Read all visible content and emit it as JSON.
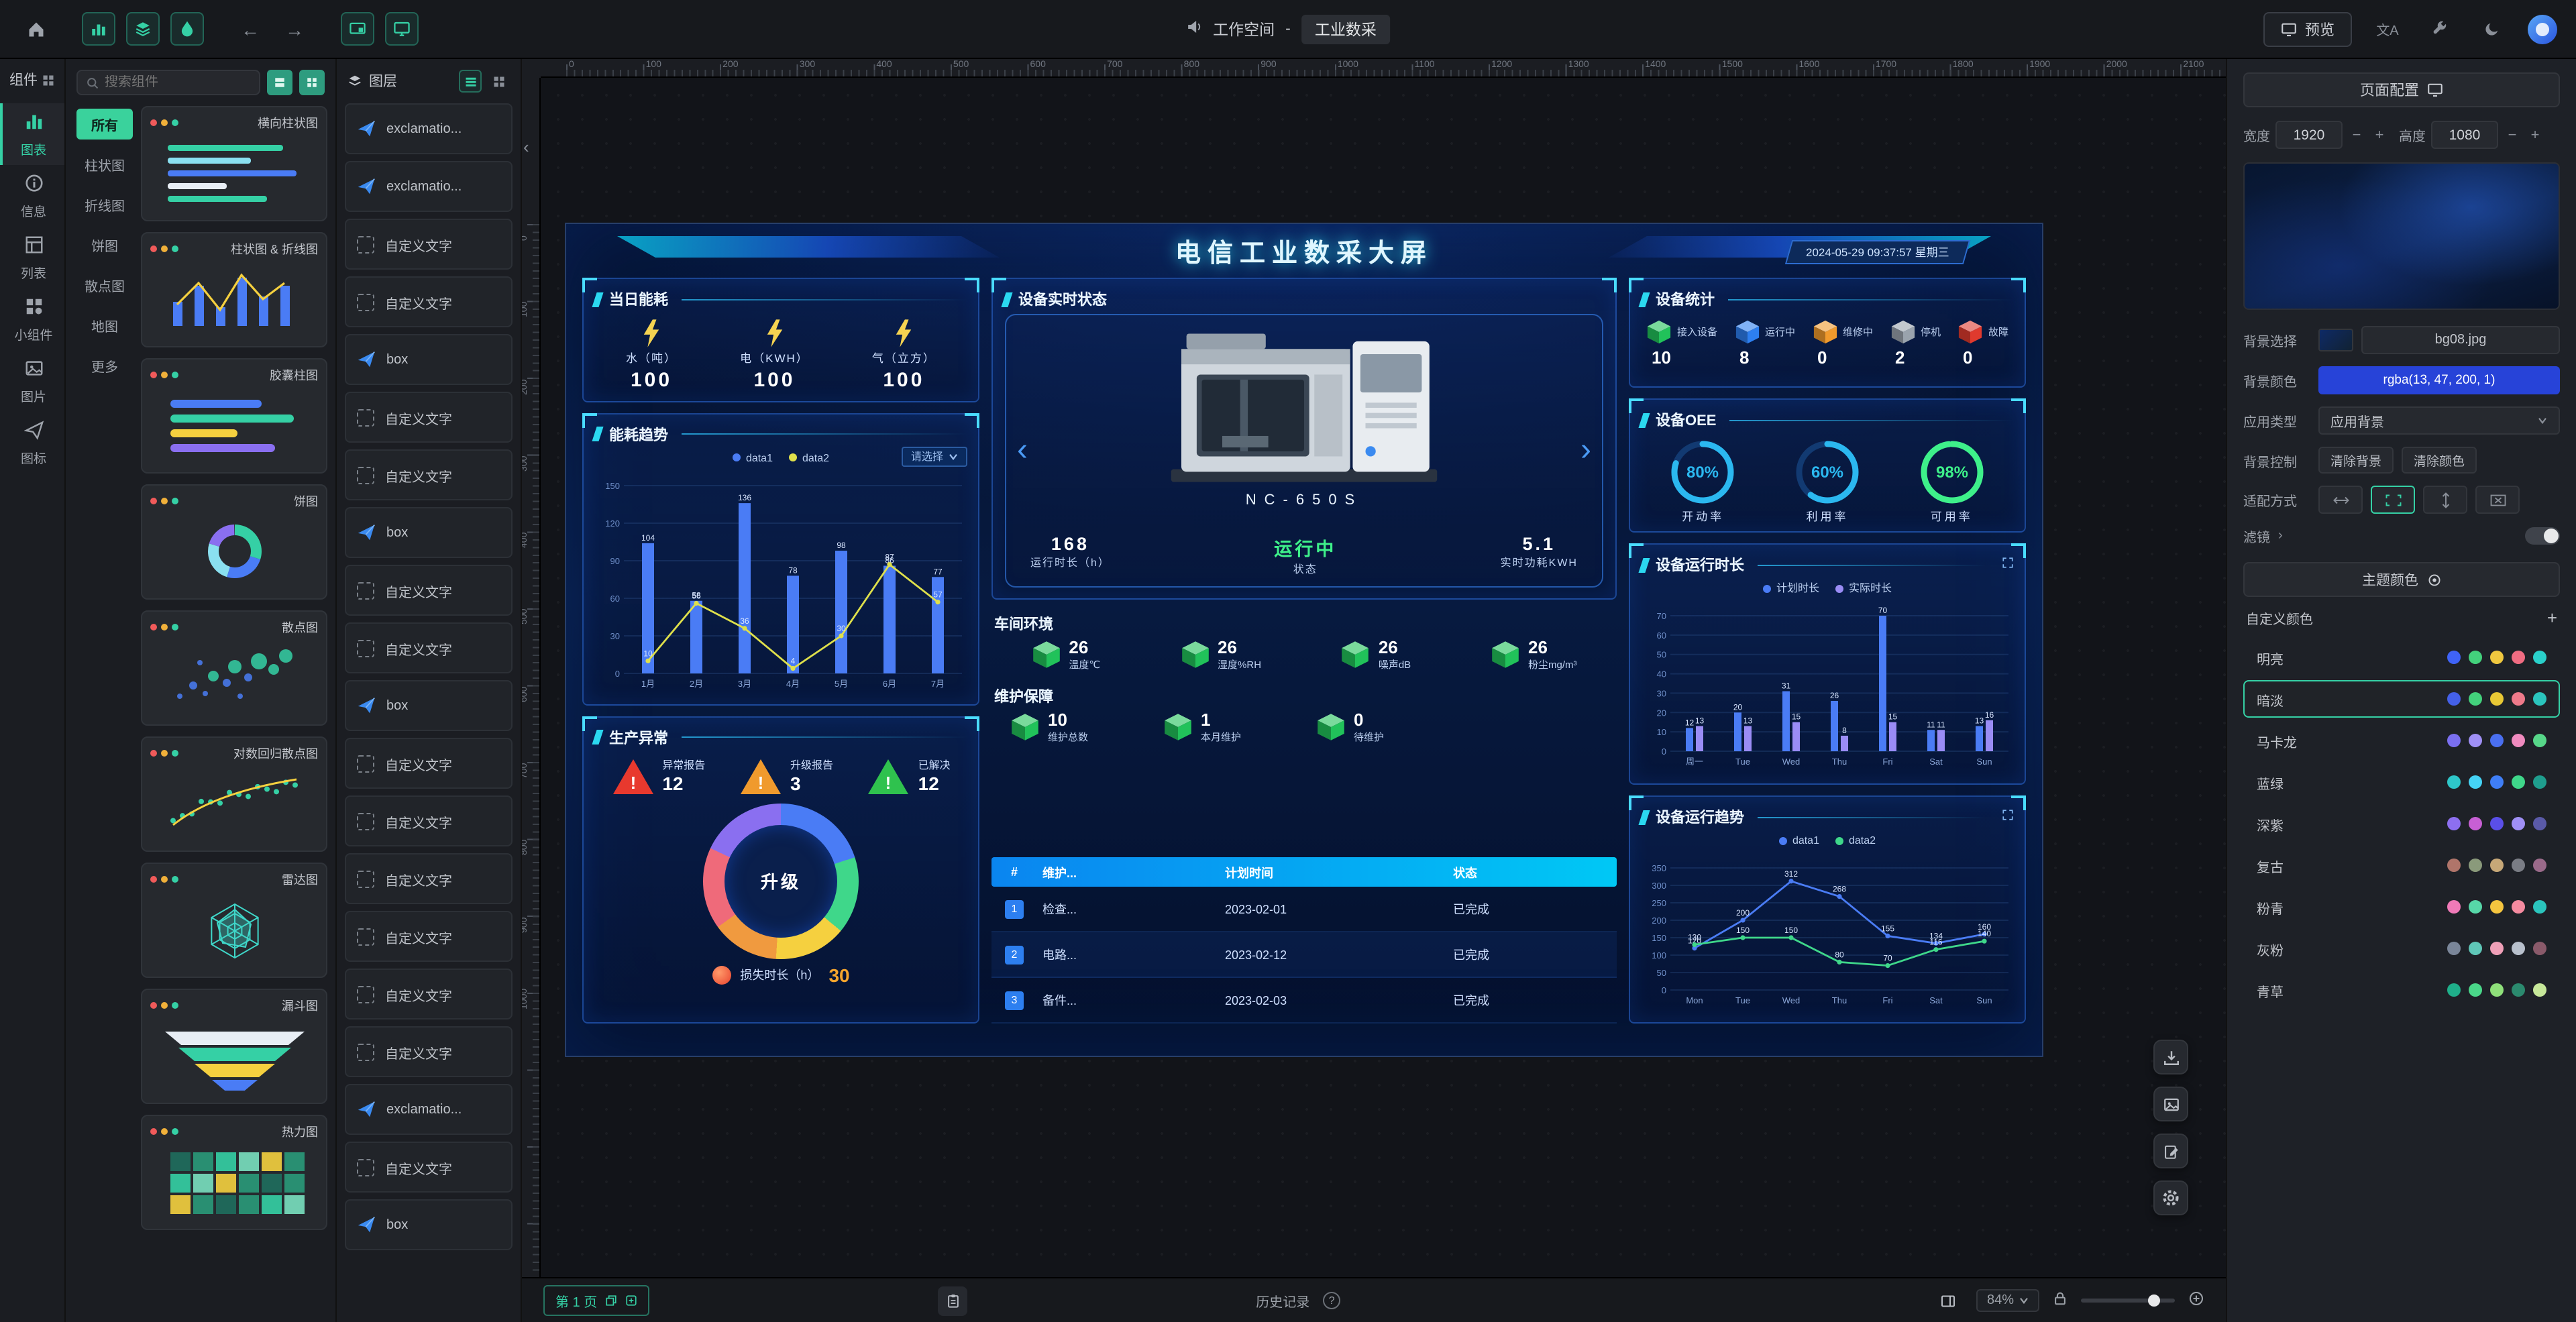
{
  "topbar": {
    "workspace": "工作空间",
    "separator": "-",
    "project": "工业数采",
    "preview": "预览"
  },
  "sidebar": {
    "header": "组件",
    "items": [
      {
        "label": "图表",
        "active": true
      },
      {
        "label": "信息"
      },
      {
        "label": "列表"
      },
      {
        "label": "小组件"
      },
      {
        "label": "图片"
      },
      {
        "label": "图标"
      }
    ]
  },
  "components": {
    "search_placeholder": "搜索组件",
    "categories": [
      {
        "label": "所有",
        "active": true
      },
      {
        "label": "柱状图"
      },
      {
        "label": "折线图"
      },
      {
        "label": "饼图"
      },
      {
        "label": "散点图"
      },
      {
        "label": "地图"
      },
      {
        "label": "更多"
      }
    ],
    "cards": [
      {
        "name": "横向柱状图",
        "kind": "hbar"
      },
      {
        "name": "柱状图 & 折线图",
        "kind": "barline"
      },
      {
        "name": "胶囊柱图",
        "kind": "capsule"
      },
      {
        "name": "饼图",
        "kind": "donut"
      },
      {
        "name": "散点图",
        "kind": "scatter"
      },
      {
        "name": "对数回归散点图",
        "kind": "scatter2"
      },
      {
        "name": "雷达图",
        "kind": "radar"
      },
      {
        "name": "漏斗图",
        "kind": "funnel"
      },
      {
        "name": "热力图",
        "kind": "heat"
      }
    ]
  },
  "layers": {
    "header": "图层",
    "items": [
      {
        "label": "exclamatio...",
        "icon": "plane"
      },
      {
        "label": "exclamatio...",
        "icon": "plane"
      },
      {
        "label": "自定义文字",
        "icon": "dashed"
      },
      {
        "label": "自定义文字",
        "icon": "dashed"
      },
      {
        "label": "box",
        "icon": "plane"
      },
      {
        "label": "自定义文字",
        "icon": "dashed"
      },
      {
        "label": "自定义文字",
        "icon": "dashed"
      },
      {
        "label": "box",
        "icon": "plane"
      },
      {
        "label": "自定义文字",
        "icon": "dashed"
      },
      {
        "label": "自定义文字",
        "icon": "dashed"
      },
      {
        "label": "box",
        "icon": "plane"
      },
      {
        "label": "自定义文字",
        "icon": "dashed"
      },
      {
        "label": "自定义文字",
        "icon": "dashed"
      },
      {
        "label": "自定义文字",
        "icon": "dashed"
      },
      {
        "label": "自定义文字",
        "icon": "dashed"
      },
      {
        "label": "自定义文字",
        "icon": "dashed"
      },
      {
        "label": "自定义文字",
        "icon": "dashed"
      },
      {
        "label": "exclamatio...",
        "icon": "plane"
      },
      {
        "label": "自定义文字",
        "icon": "dashed"
      },
      {
        "label": "box",
        "icon": "plane"
      }
    ]
  },
  "screen": {
    "header": {
      "title": "电信工业数采大屏",
      "datetime": "2024-05-29 09:37:57 星期三"
    },
    "energy": {
      "title": "当日能耗",
      "items": [
        {
          "label": "水（吨）",
          "value": "100"
        },
        {
          "label": "电（KWH）",
          "value": "100"
        },
        {
          "label": "气（立方）",
          "value": "100"
        }
      ]
    },
    "trend": {
      "title": "能耗趋势",
      "select": "请选择",
      "chart_data": {
        "type": "bar+line",
        "categories": [
          "1月",
          "2月",
          "3月",
          "4月",
          "5月",
          "6月",
          "7月"
        ],
        "series": [
          {
            "name": "data1",
            "type": "bar",
            "color": "#4a7cf5",
            "values": [
              104,
              58,
              136,
              78,
              98,
              86,
              77
            ]
          },
          {
            "name": "data2",
            "type": "line",
            "color": "#dfe04b",
            "values": [
              10,
              56,
              36,
              4,
              30,
              87,
              57
            ]
          }
        ],
        "ymax": 150,
        "ystep": 30
      }
    },
    "abnormal": {
      "title": "生产异常",
      "items": [
        {
          "label": "异常报告",
          "value": "12",
          "color": "#e8392e"
        },
        {
          "label": "升级报告",
          "value": "3",
          "color": "#f09a2d"
        },
        {
          "label": "已解决",
          "value": "12",
          "color": "#2fc24e"
        }
      ],
      "donut": {
        "center": "升级",
        "segments": [
          {
            "value": 20,
            "color": "#4a7cf5"
          },
          {
            "value": 16,
            "color": "#3fd78a"
          },
          {
            "value": 15,
            "color": "#f5d03f"
          },
          {
            "value": 14,
            "color": "#f09a3f"
          },
          {
            "value": 17,
            "color": "#ef6a7a"
          },
          {
            "value": 18,
            "color": "#8a6ff0"
          }
        ]
      },
      "loss": {
        "label": "损失时长（h）",
        "value": "30"
      }
    },
    "device": {
      "title": "设备实时状态",
      "model": "NC-650S",
      "stats": [
        {
          "value": "168",
          "label": "运行时长（h）"
        },
        {
          "value": "运行中",
          "label": "状态",
          "highlight": true
        },
        {
          "value": "5.1",
          "label": "实时功耗KWH"
        }
      ]
    },
    "env": {
      "title": "车间环境",
      "cube_color": "#21c25a",
      "items": [
        {
          "value": "26",
          "label": "温度℃"
        },
        {
          "value": "26",
          "label": "湿度%RH"
        },
        {
          "value": "26",
          "label": "噪声dB"
        },
        {
          "value": "26",
          "label": "粉尘mg/m³"
        }
      ]
    },
    "maintain": {
      "title": "维护保障",
      "cube_color": "#21c25a",
      "items": [
        {
          "value": "10",
          "label": "维护总数"
        },
        {
          "value": "1",
          "label": "本月维护"
        },
        {
          "value": "0",
          "label": "待维护"
        }
      ]
    },
    "table": {
      "headers": [
        "#",
        "维护...",
        "计划时间",
        "状态"
      ],
      "rows": [
        [
          "1",
          "检查...",
          "2023-02-01",
          "已完成"
        ],
        [
          "2",
          "电路...",
          "2023-02-12",
          "已完成"
        ],
        [
          "3",
          "备件...",
          "2023-02-03",
          "已完成"
        ]
      ]
    },
    "stats": {
      "title": "设备统计",
      "items": [
        {
          "label": "接入设备",
          "value": "10",
          "color": "#21c25a"
        },
        {
          "label": "运行中",
          "value": "8",
          "color": "#2d7ff0"
        },
        {
          "label": "维修中",
          "value": "0",
          "color": "#f09a2d"
        },
        {
          "label": "停机",
          "value": "2",
          "color": "#9aa3ad"
        },
        {
          "label": "故障",
          "value": "0",
          "color": "#e03a2e"
        }
      ]
    },
    "oee": {
      "title": "设备OEE",
      "items": [
        {
          "value": 80,
          "label": "开动率",
          "color": "#2bb8f0"
        },
        {
          "value": 60,
          "label": "利用率",
          "color": "#2bb8f0"
        },
        {
          "value": 98,
          "label": "可用率",
          "color": "#3ef08a"
        }
      ]
    },
    "runtime": {
      "title": "设备运行时长",
      "chart_data": {
        "type": "bar",
        "categories": [
          "周一",
          "Tue",
          "Wed",
          "Thu",
          "Fri",
          "Sat",
          "Sun"
        ],
        "series": [
          {
            "name": "计划时长",
            "type": "bar",
            "color": "#4a7cf5",
            "values": [
              12,
              20,
              31,
              26,
              70,
              11,
              13
            ]
          },
          {
            "name": "实际时长",
            "type": "bar",
            "color": "#9a8cf5",
            "values": [
              13,
              13,
              15,
              8,
              15,
              11,
              16
            ]
          }
        ],
        "ymax": 70,
        "ystep": 10
      }
    },
    "runtrend": {
      "title": "设备运行趋势",
      "chart_data": {
        "type": "line",
        "categories": [
          "Mon",
          "Tue",
          "Wed",
          "Thu",
          "Fri",
          "Sat",
          "Sun"
        ],
        "series": [
          {
            "name": "data1",
            "type": "line",
            "color": "#4a7cf5",
            "values": [
              120,
              200,
              312,
              268,
              155,
              134,
              160
            ]
          },
          {
            "name": "data2",
            "type": "line",
            "color": "#3fd78a",
            "values": [
              130,
              150,
              150,
              80,
              70,
              116,
              140
            ]
          }
        ],
        "ymax": 350,
        "ystep": 50
      }
    }
  },
  "config": {
    "title": "页面配置",
    "width_label": "宽度",
    "width_value": "1920",
    "height_label": "高度",
    "height_value": "1080",
    "bg_select_label": "背景选择",
    "bg_file": "bg08.jpg",
    "bg_color_label": "背景颜色",
    "bg_color_value": "rgba(13, 47, 200, 1)",
    "app_type_label": "应用类型",
    "app_type_value": "应用背景",
    "bg_control_label": "背景控制",
    "clear_bg": "清除背景",
    "clear_color": "清除颜色",
    "fit_label": "适配方式",
    "filter_label": "滤镜",
    "theme_button": "主题颜色",
    "custom_color": "自定义颜色",
    "themes": [
      {
        "name": "明亮",
        "colors": [
          "#3f63f7",
          "#43d17c",
          "#f0c83f",
          "#f06c82",
          "#2ad0ca"
        ]
      },
      {
        "name": "暗淡",
        "colors": [
          "#4460e8",
          "#43d17c",
          "#e8c835",
          "#ef7a8a",
          "#2bc5bd"
        ],
        "selected": true
      },
      {
        "name": "马卡龙",
        "colors": [
          "#7a6ff0",
          "#9f8ff5",
          "#4a6ff0",
          "#f08bbf",
          "#57d789"
        ]
      },
      {
        "name": "蓝绿",
        "colors": [
          "#2ec7c9",
          "#45d3f5",
          "#3f7ef7",
          "#3fd78a",
          "#1f9e8e"
        ]
      },
      {
        "name": "深紫",
        "colors": [
          "#8d6ff0",
          "#c75fd4",
          "#5a4fe8",
          "#9f8ff5",
          "#5a5aa8"
        ]
      },
      {
        "name": "复古",
        "colors": [
          "#b0756a",
          "#8a9a7b",
          "#c7a878",
          "#7a7d85",
          "#9a6a8a"
        ]
      },
      {
        "name": "粉青",
        "colors": [
          "#f07ab8",
          "#57d7a8",
          "#f5c53f",
          "#f58ba0",
          "#2bc5bd"
        ]
      },
      {
        "name": "灰粉",
        "colors": [
          "#7a8699",
          "#5fc7b8",
          "#f0a0b8",
          "#b8c0cc",
          "#8a5a6a"
        ]
      },
      {
        "name": "青草",
        "colors": [
          "#1faf8a",
          "#4ad789",
          "#8fe07a",
          "#2b8a6e",
          "#c7e89a"
        ]
      }
    ]
  },
  "bottombar": {
    "page": "第 1 页",
    "history": "历史记录",
    "zoom": "84%"
  },
  "rulers": {
    "h_max": 2100,
    "v_max": 1000,
    "step": 100
  }
}
